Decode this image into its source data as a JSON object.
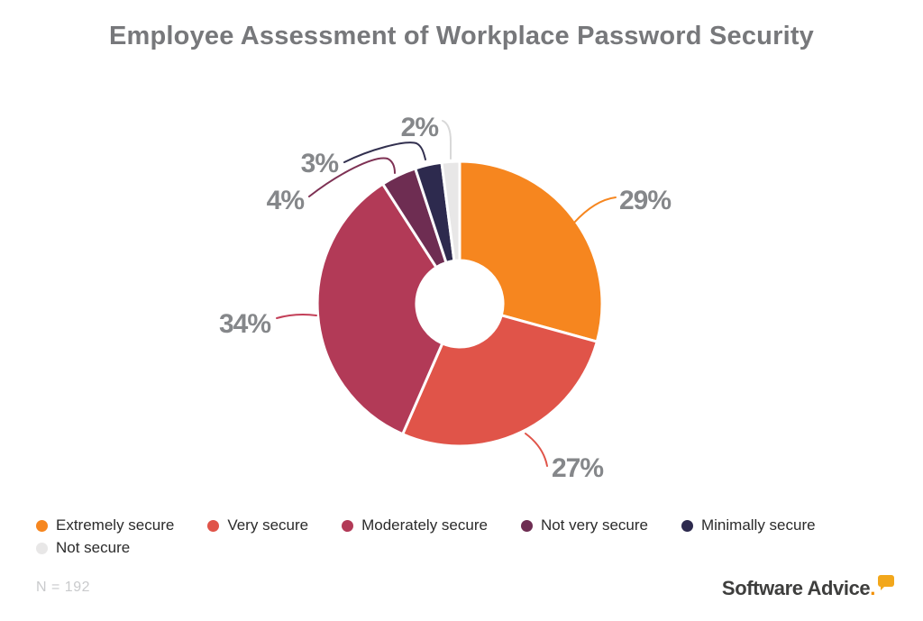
{
  "title": "Employee Assessment of Workplace Password Security",
  "chart_data": {
    "type": "pie",
    "subtype": "donut",
    "title": "Employee Assessment of Workplace Password Security",
    "categories": [
      "Extremely secure",
      "Very secure",
      "Moderately secure",
      "Not very secure",
      "Minimally secure",
      "Not secure"
    ],
    "values": [
      29,
      27,
      34,
      4,
      3,
      2
    ],
    "unit": "%",
    "colors": [
      "#F6861F",
      "#E05449",
      "#B23A57",
      "#6E2D52",
      "#2D2A4E",
      "#E8E7E7"
    ],
    "leader_colors": [
      "#F6861F",
      "#E05449",
      "#C33F58",
      "#7E3154",
      "#32304F",
      "#D8D8D8"
    ],
    "label_color": "#85878A",
    "legend_position": "bottom",
    "start_angle_deg": 0,
    "direction": "clockwise"
  },
  "footer": {
    "sample_note": "N = 192",
    "brand": {
      "name": "Software Advice",
      "period": ".",
      "bubble_color": "#F2A71B"
    }
  }
}
